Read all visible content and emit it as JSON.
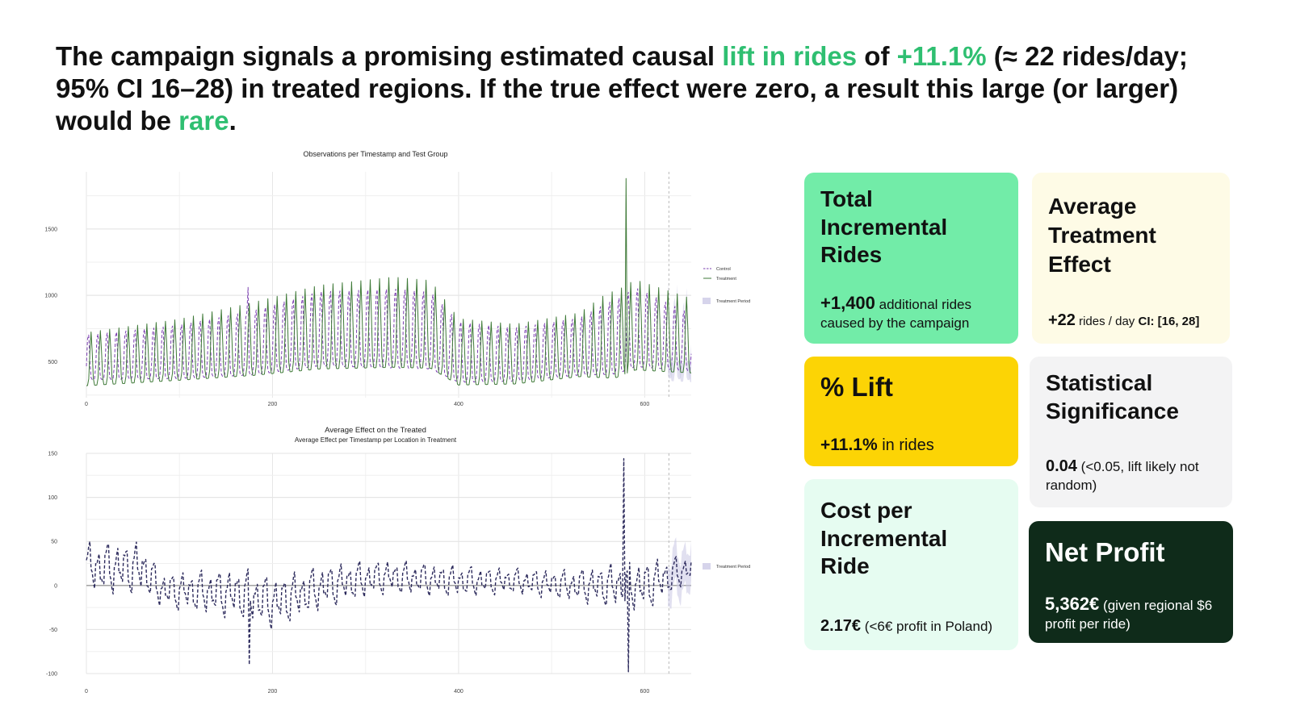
{
  "headline": {
    "p1": "The campaign signals a promising estimated causal ",
    "h1": "lift in rides",
    "p2": " of ",
    "h2": "+11.1%",
    "p3": " (≈ 22 rides/day; 95% CI 16–28) in treated regions. If the true effect were zero, a result this large (or larger) would be ",
    "h3": "rare",
    "p4": "."
  },
  "colors": {
    "highlight": "#2fbf71",
    "control": "#7b3fb0",
    "treatment": "#3f7a38",
    "effect": "#2c2a5c",
    "band": "#c8c6e4"
  },
  "chart_data": [
    {
      "type": "line",
      "title": "Observations per Timestamp and Test Group",
      "xlim": [
        0,
        650
      ],
      "ylim": [
        230,
        1930
      ],
      "x_ticks": [
        0,
        200,
        400,
        600
      ],
      "y_ticks": [
        500,
        1000,
        1500
      ],
      "grid": true,
      "treatment_start": 626,
      "series": [
        {
          "name": "Control",
          "style": "dashed",
          "period": 10,
          "base": [
            [
              0,
              420
            ],
            [
              100,
              440
            ],
            [
              180,
              480
            ],
            [
              250,
              560
            ],
            [
              330,
              550
            ],
            [
              370,
              540
            ],
            [
              400,
              420
            ],
            [
              460,
              420
            ],
            [
              530,
              470
            ],
            [
              570,
              500
            ],
            [
              590,
              560
            ],
            [
              650,
              500
            ]
          ],
          "amp": [
            [
              0,
              360
            ],
            [
              100,
              430
            ],
            [
              180,
              520
            ],
            [
              250,
              600
            ],
            [
              330,
              640
            ],
            [
              370,
              620
            ],
            [
              400,
              490
            ],
            [
              460,
              430
            ],
            [
              530,
              460
            ],
            [
              560,
              580
            ],
            [
              590,
              640
            ],
            [
              650,
              460
            ]
          ]
        },
        {
          "name": "Treatment",
          "style": "solid",
          "period": 10,
          "base": [
            [
              0,
              380
            ],
            [
              100,
              430
            ],
            [
              180,
              480
            ],
            [
              250,
              540
            ],
            [
              330,
              560
            ],
            [
              370,
              550
            ],
            [
              400,
              400
            ],
            [
              460,
              400
            ],
            [
              530,
              460
            ],
            [
              570,
              480
            ],
            [
              590,
              540
            ],
            [
              650,
              500
            ]
          ],
          "amp": [
            [
              0,
              400
            ],
            [
              100,
              460
            ],
            [
              180,
              550
            ],
            [
              250,
              630
            ],
            [
              330,
              680
            ],
            [
              370,
              660
            ],
            [
              400,
              500
            ],
            [
              460,
              450
            ],
            [
              530,
              480
            ],
            [
              560,
              640
            ],
            [
              590,
              680
            ],
            [
              650,
              560
            ]
          ]
        }
      ],
      "spikes": [
        {
          "x": 174,
          "series": "Control",
          "y": 1060
        },
        {
          "x": 580,
          "series": "Treatment",
          "y": 1880
        }
      ],
      "legend": {
        "entries": [
          "Control",
          "Treatment"
        ],
        "band_label": "Treatment Period",
        "position": "right"
      }
    },
    {
      "type": "line",
      "title": "Average Effect on the Treated",
      "subtitle": "Average Effect per Timestamp per Location in Treatment",
      "xlim": [
        0,
        650
      ],
      "ylim": [
        -100,
        150
      ],
      "x_ticks": [
        0,
        200,
        400,
        600
      ],
      "y_ticks": [
        -100,
        -50,
        0,
        50,
        100,
        150
      ],
      "grid": true,
      "treatment_start": 626,
      "series": [
        {
          "name": "Effect",
          "style": "dashed",
          "period": 10,
          "base": [
            [
              0,
              20
            ],
            [
              60,
              20
            ],
            [
              80,
              -5
            ],
            [
              170,
              -10
            ],
            [
              200,
              -20
            ],
            [
              230,
              -10
            ],
            [
              260,
              0
            ],
            [
              320,
              10
            ],
            [
              400,
              5
            ],
            [
              460,
              5
            ],
            [
              520,
              0
            ],
            [
              560,
              0
            ],
            [
              600,
              0
            ],
            [
              626,
              10
            ],
            [
              650,
              20
            ]
          ],
          "amp": [
            [
              0,
              30
            ],
            [
              60,
              30
            ],
            [
              80,
              20
            ],
            [
              170,
              30
            ],
            [
              200,
              30
            ],
            [
              260,
              25
            ],
            [
              320,
              20
            ],
            [
              400,
              18
            ],
            [
              460,
              15
            ],
            [
              520,
              18
            ],
            [
              560,
              25
            ],
            [
              600,
              30
            ],
            [
              650,
              15
            ]
          ]
        }
      ],
      "spikes": [
        {
          "x": 175,
          "y": -90
        },
        {
          "x": 578,
          "y": 144
        },
        {
          "x": 582,
          "y": -98
        }
      ],
      "legend": {
        "band_label": "Treatment Period",
        "position": "right"
      }
    }
  ],
  "cards": {
    "total": {
      "title": "Total Incremental Rides",
      "value": "+1,400",
      "text": "additional rides caused by the campaign",
      "color": "#72eca8"
    },
    "ate": {
      "title": "Average Treatment Effect",
      "value": "+22",
      "text": "rides / day",
      "ci": "CI: [16, 28]",
      "color": "#fefbe6"
    },
    "lift": {
      "title": "% Lift",
      "value": "+11.1%",
      "text": "in rides",
      "color": "#fcd405"
    },
    "sig": {
      "title": "Statistical Significance",
      "value": "0.04",
      "text": "(<0.05, lift likely not random)",
      "color": "#f3f3f4"
    },
    "cost": {
      "title": "Cost per Incremental Ride",
      "value": "2.17€",
      "text": "(<6€ profit in Poland)",
      "color": "#e6fcf1"
    },
    "profit": {
      "title": "Net Profit",
      "value": "5,362€",
      "text": "(given regional $6 profit per ride)",
      "color": "#0f2b1a"
    }
  }
}
